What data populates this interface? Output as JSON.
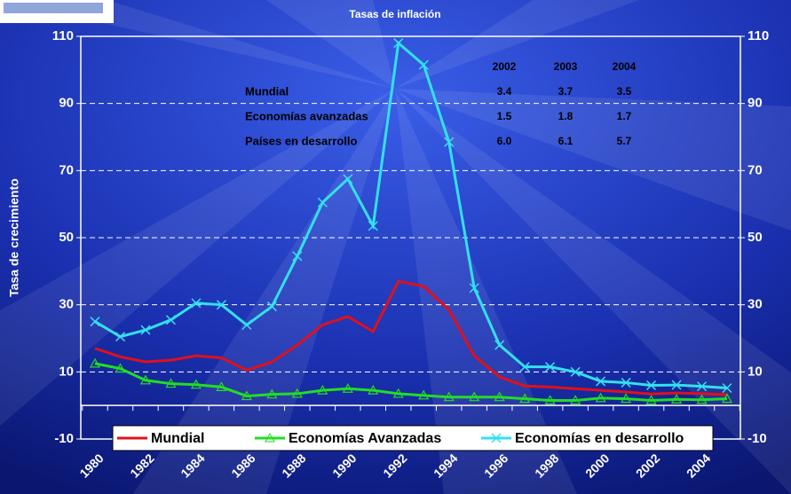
{
  "chart_data": {
    "type": "line",
    "title": "Tasas de inflación",
    "y_label": "Tasa de crecimiento",
    "categories": [
      "1980",
      null,
      "1982",
      null,
      "1984",
      null,
      "1986",
      null,
      "1988",
      null,
      "1990",
      null,
      "1992",
      null,
      "1994",
      null,
      "1996",
      null,
      "1998",
      null,
      "2000",
      null,
      "2002",
      null,
      "2004",
      null
    ],
    "series": [
      {
        "name": "Mundial",
        "color": "#e0101a",
        "marker": "none",
        "values": [
          17,
          14.5,
          13,
          13.5,
          14.8,
          14.2,
          10.5,
          13,
          18,
          24,
          26.5,
          22,
          37,
          35.5,
          28.5,
          14.8,
          8.5,
          5.8,
          5.5,
          5,
          4.5,
          4,
          3.4,
          3.7,
          3.5,
          3.2
        ]
      },
      {
        "name": "Economías Avanzadas",
        "color": "#22dd22",
        "marker": "triangle",
        "values": [
          12.5,
          11,
          7.5,
          6.5,
          6.2,
          5.5,
          2.8,
          3.3,
          3.5,
          4.5,
          5,
          4.5,
          3.5,
          3,
          2.5,
          2.5,
          2.5,
          2,
          1.5,
          1.5,
          2.2,
          2,
          1.5,
          1.8,
          1.7,
          2
        ]
      },
      {
        "name": "Economías en desarrollo",
        "color": "#33e0f0",
        "marker": "x",
        "values": [
          25,
          20.5,
          22.5,
          25.5,
          30.5,
          30,
          24,
          29.5,
          44.5,
          60.5,
          67.5,
          53.5,
          108,
          101.5,
          78.5,
          35,
          18,
          11.5,
          11.5,
          10,
          7.2,
          6.8,
          6,
          6.1,
          5.7,
          5.2
        ]
      }
    ],
    "ylim": [
      -10,
      110
    ],
    "yticks": [
      -10,
      10,
      30,
      50,
      70,
      90,
      110
    ],
    "y2lim": [
      -10,
      110
    ],
    "y2ticks": [
      -10,
      10,
      30,
      50,
      70,
      90,
      110
    ],
    "grid": true,
    "legend": "bottom",
    "table": {
      "header": [
        "2002",
        "2003",
        "2004"
      ],
      "rows": [
        [
          "Mundial",
          "3.4",
          "3.7",
          "3.5"
        ],
        [
          "Economías avanzadas",
          "1.5",
          "1.8",
          "1.7"
        ],
        [
          "Países en desarrollo",
          "6.0",
          "6.1",
          "5.7"
        ]
      ]
    }
  }
}
